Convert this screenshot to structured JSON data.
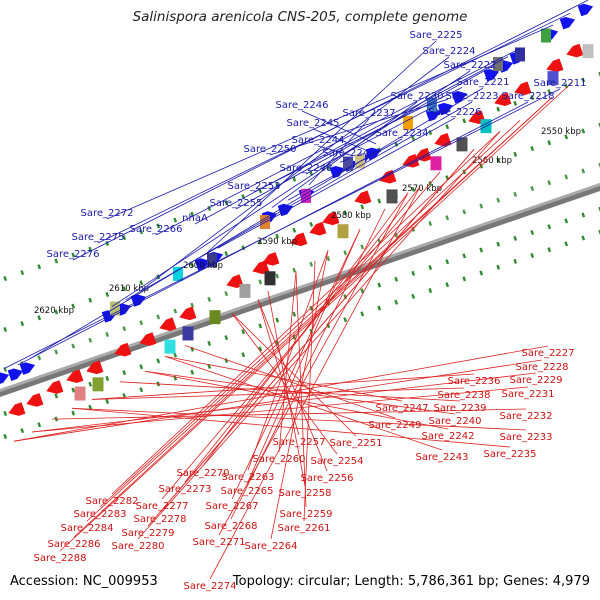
{
  "title": "Salinispora arenicola CNS-205, complete genome",
  "accession": "Accession: NC_009953",
  "summary": "Topology: circular; Length: 5,786,361 bp; Genes: 4,979",
  "colors": {
    "forward_label": "#1a1aaa",
    "reverse_label": "#cc1111",
    "backbone": "#777777",
    "tick_dot": "#2e8b2e"
  },
  "ticks": [
    "2550 kbp",
    "2560 kbp",
    "2570 kbp",
    "2580 kbp",
    "2590 kbp",
    "2600 kbp",
    "2610 kbp",
    "2620 kbp"
  ],
  "forward_genes": [
    "Sare_2211",
    "Sare_2218",
    "Sare_2221",
    "Sare_2222",
    "Sare_2223",
    "Sare_2224",
    "Sare_2225",
    "Sare_2226",
    "Sare_2230",
    "Sare_2234",
    "Sare_2237",
    "Sare_2241",
    "Sare_2244",
    "Sare_2245",
    "Sare_2246",
    "Sare_2248",
    "Sare_2250",
    "Sare_2253",
    "Sare_2255",
    "nhaA",
    "Sare_2266",
    "Sare_2272",
    "Sare_2275",
    "Sare_2276"
  ],
  "reverse_genes": [
    "Sare_2227",
    "Sare_2228",
    "Sare_2229",
    "Sare_2231",
    "Sare_2232",
    "Sare_2233",
    "Sare_2235",
    "Sare_2236",
    "Sare_2238",
    "Sare_2239",
    "Sare_2240",
    "Sare_2242",
    "Sare_2243",
    "Sare_2247",
    "Sare_2249",
    "Sare_2251",
    "Sare_2254",
    "Sare_2256",
    "Sare_2257",
    "Sare_2258",
    "Sare_2259",
    "Sare_2260",
    "Sare_2261",
    "Sare_2263",
    "Sare_2264",
    "Sare_2265",
    "Sare_2267",
    "Sare_2268",
    "Sare_2270",
    "Sare_2271",
    "Sare_2273",
    "Sare_2274",
    "Sare_2277",
    "Sare_2278",
    "Sare_2279",
    "Sare_2280",
    "Sare_2282",
    "Sare_2283",
    "Sare_2284",
    "Sare_2286",
    "Sare_2288"
  ]
}
